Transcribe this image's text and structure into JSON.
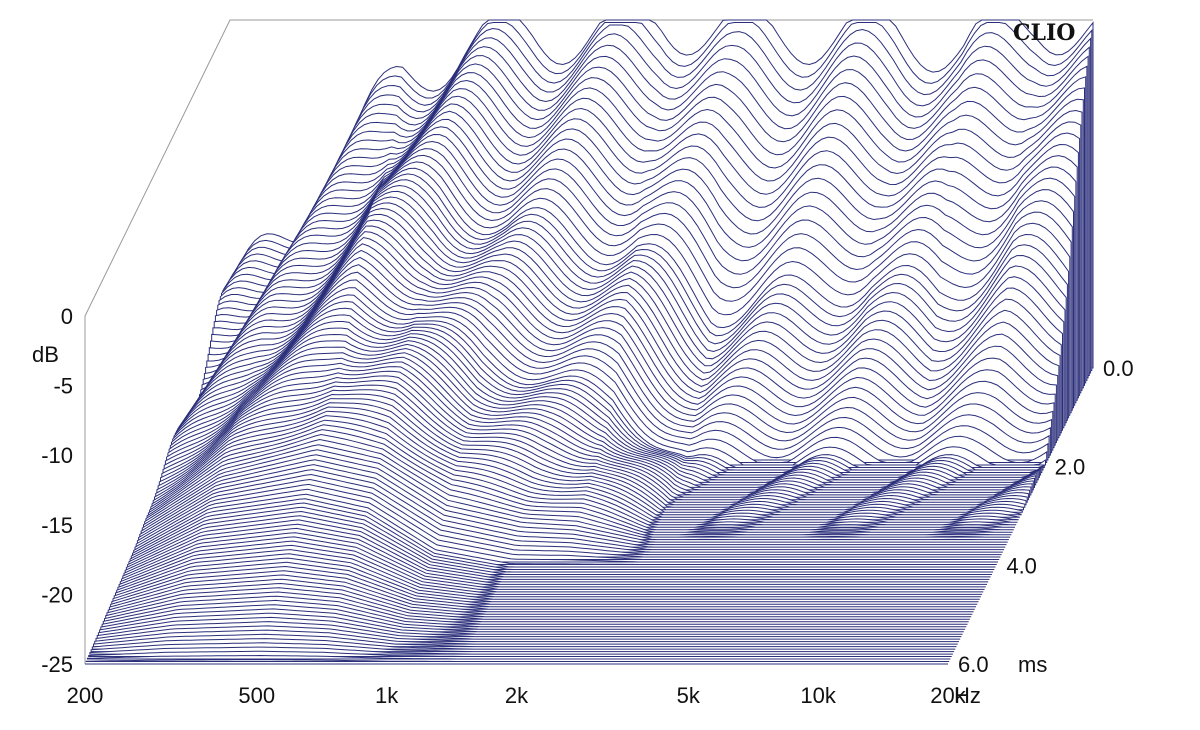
{
  "chart_data": {
    "type": "area",
    "watermark": "CLIO",
    "z_axis": {
      "label": "dB",
      "range": [
        -25,
        0
      ],
      "ticks": [
        "0",
        "-5",
        "-10",
        "-15",
        "-20",
        "-25"
      ],
      "tick_values": [
        0,
        -5,
        -10,
        -15,
        -20,
        -25
      ]
    },
    "x_axis": {
      "unit": "Hz",
      "scale": "log",
      "range": [
        200,
        20000
      ],
      "ticks": [
        "200",
        "500",
        "1k",
        "2k",
        "5k",
        "10k",
        "20k"
      ],
      "tick_values": [
        200,
        500,
        1000,
        2000,
        5000,
        10000,
        20000
      ]
    },
    "y_axis": {
      "unit": "ms",
      "range": [
        0,
        6
      ],
      "ticks": [
        "0.0",
        "2.0",
        "4.0",
        "6.0"
      ],
      "tick_values": [
        0,
        2,
        4,
        6
      ]
    },
    "slices": 120,
    "series": [
      {
        "time_ms": 0.0,
        "freq_hz": [
          200,
          300,
          500,
          700,
          1000,
          1500,
          2000,
          3000,
          5000,
          7000,
          10000,
          15000,
          20000
        ],
        "db": [
          -20,
          -14,
          -4,
          -2,
          -1,
          -1,
          0,
          -1,
          -1,
          -1,
          -2,
          0,
          -1
        ]
      },
      {
        "time_ms": 1.0,
        "freq_hz": [
          200,
          300,
          500,
          700,
          1000,
          1500,
          2000,
          3000,
          5000,
          7000,
          10000,
          15000,
          20000
        ],
        "db": [
          -21,
          -15,
          -8,
          -9,
          -11,
          -12,
          -13,
          -17,
          -16,
          -15,
          -16,
          -13,
          -14
        ]
      },
      {
        "time_ms": 2.0,
        "freq_hz": [
          200,
          300,
          500,
          700,
          1000,
          1500,
          2000,
          3000,
          5000,
          7000,
          10000,
          15000,
          20000
        ],
        "db": [
          -22,
          -17,
          -13,
          -14,
          -17,
          -19,
          -20,
          -25,
          -25,
          -25,
          -25,
          -25,
          -25
        ]
      },
      {
        "time_ms": 4.0,
        "freq_hz": [
          200,
          300,
          500,
          700,
          1000,
          1500,
          2000,
          3000,
          5000,
          7000,
          10000,
          15000,
          20000
        ],
        "db": [
          -24,
          -21,
          -20,
          -21,
          -24,
          -25,
          -25,
          -25,
          -25,
          -25,
          -25,
          -25,
          -25
        ]
      },
      {
        "time_ms": 6.0,
        "freq_hz": [
          200,
          300,
          500,
          700,
          1000,
          1500,
          2000,
          3000,
          5000,
          7000,
          10000,
          15000,
          20000
        ],
        "db": [
          -25,
          -25,
          -25,
          -25,
          -25,
          -25,
          -25,
          -25,
          -25,
          -25,
          -25,
          -25,
          -25
        ]
      }
    ],
    "colors": {
      "line": "#2b2f7a",
      "floor": "#2b2f7a",
      "fill": "#ffffff"
    }
  }
}
